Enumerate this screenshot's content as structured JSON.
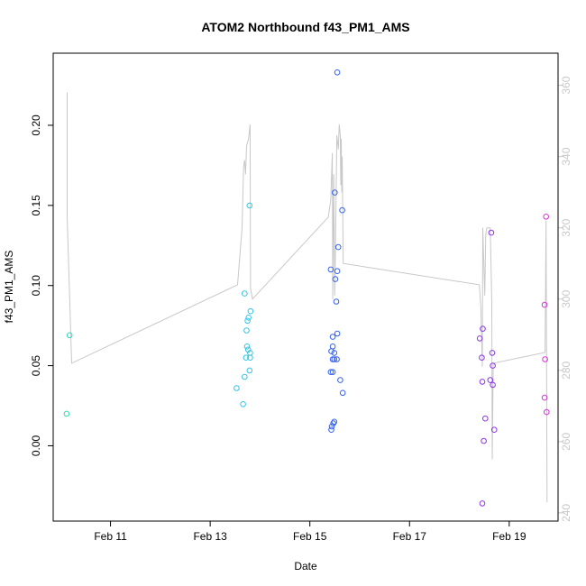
{
  "chart_data": {
    "type": "scatter",
    "title": "ATOM2 Northbound f43_PM1_AMS",
    "xlabel": "Date",
    "ylabel": "f43_PM1_AMS",
    "xlim": [
      9.85,
      19.98
    ],
    "ylim": [
      -0.047,
      0.245
    ],
    "y2lim": [
      237.7,
      369.0
    ],
    "grid": false,
    "x_ticks": [
      {
        "value": 11,
        "label": "Feb 11"
      },
      {
        "value": 13,
        "label": "Feb 13"
      },
      {
        "value": 15,
        "label": "Feb 15"
      },
      {
        "value": 17,
        "label": "Feb 17"
      },
      {
        "value": 19,
        "label": "Feb 19"
      }
    ],
    "y_ticks": [
      {
        "value": 0.0,
        "label": "0.00"
      },
      {
        "value": 0.05,
        "label": "0.05"
      },
      {
        "value": 0.1,
        "label": "0.10"
      },
      {
        "value": 0.15,
        "label": "0.15"
      },
      {
        "value": 0.2,
        "label": "0.20"
      }
    ],
    "y2_ticks": [
      {
        "value": 240,
        "label": "240"
      },
      {
        "value": 260,
        "label": "260"
      },
      {
        "value": 280,
        "label": "280"
      },
      {
        "value": 300,
        "label": "300"
      },
      {
        "value": 320,
        "label": "320"
      },
      {
        "value": 340,
        "label": "340"
      },
      {
        "value": 360,
        "label": "360"
      }
    ],
    "points": [
      {
        "x": 10.18,
        "y": 0.069,
        "color": "#33d6b5"
      },
      {
        "x": 10.12,
        "y": 0.02,
        "color": "#33d6b5"
      },
      {
        "x": 13.69,
        "y": 0.095,
        "color": "#33c5e6"
      },
      {
        "x": 13.79,
        "y": 0.15,
        "color": "#33c5e6"
      },
      {
        "x": 13.81,
        "y": 0.084,
        "color": "#33c5e6"
      },
      {
        "x": 13.77,
        "y": 0.08,
        "color": "#33c5e6"
      },
      {
        "x": 13.75,
        "y": 0.078,
        "color": "#33c5e6"
      },
      {
        "x": 13.73,
        "y": 0.072,
        "color": "#33c5e6"
      },
      {
        "x": 13.74,
        "y": 0.062,
        "color": "#33c5e6"
      },
      {
        "x": 13.76,
        "y": 0.06,
        "color": "#33c5e6"
      },
      {
        "x": 13.8,
        "y": 0.058,
        "color": "#33c5e6"
      },
      {
        "x": 13.72,
        "y": 0.055,
        "color": "#33c5e6"
      },
      {
        "x": 13.8,
        "y": 0.055,
        "color": "#33c5e6"
      },
      {
        "x": 13.79,
        "y": 0.047,
        "color": "#33c5e6"
      },
      {
        "x": 13.69,
        "y": 0.043,
        "color": "#33c5e6"
      },
      {
        "x": 13.53,
        "y": 0.036,
        "color": "#33c5e6"
      },
      {
        "x": 13.66,
        "y": 0.026,
        "color": "#33c5e6"
      },
      {
        "x": 15.55,
        "y": 0.233,
        "color": "#3361f0"
      },
      {
        "x": 15.5,
        "y": 0.158,
        "color": "#3361f0"
      },
      {
        "x": 15.65,
        "y": 0.147,
        "color": "#3361f0"
      },
      {
        "x": 15.57,
        "y": 0.124,
        "color": "#3361f0"
      },
      {
        "x": 15.42,
        "y": 0.11,
        "color": "#3361f0"
      },
      {
        "x": 15.55,
        "y": 0.109,
        "color": "#3361f0"
      },
      {
        "x": 15.51,
        "y": 0.104,
        "color": "#3361f0"
      },
      {
        "x": 15.53,
        "y": 0.09,
        "color": "#3361f0"
      },
      {
        "x": 15.55,
        "y": 0.07,
        "color": "#3361f0"
      },
      {
        "x": 15.46,
        "y": 0.068,
        "color": "#3361f0"
      },
      {
        "x": 15.46,
        "y": 0.062,
        "color": "#3361f0"
      },
      {
        "x": 15.43,
        "y": 0.059,
        "color": "#3361f0"
      },
      {
        "x": 15.49,
        "y": 0.058,
        "color": "#3361f0"
      },
      {
        "x": 15.46,
        "y": 0.054,
        "color": "#3361f0"
      },
      {
        "x": 15.49,
        "y": 0.054,
        "color": "#3361f0"
      },
      {
        "x": 15.54,
        "y": 0.054,
        "color": "#3361f0"
      },
      {
        "x": 15.42,
        "y": 0.046,
        "color": "#3361f0"
      },
      {
        "x": 15.46,
        "y": 0.046,
        "color": "#3361f0"
      },
      {
        "x": 15.61,
        "y": 0.041,
        "color": "#3361f0"
      },
      {
        "x": 15.66,
        "y": 0.033,
        "color": "#3361f0"
      },
      {
        "x": 15.49,
        "y": 0.015,
        "color": "#3361f0"
      },
      {
        "x": 15.47,
        "y": 0.014,
        "color": "#3361f0"
      },
      {
        "x": 15.44,
        "y": 0.012,
        "color": "#3361f0"
      },
      {
        "x": 15.43,
        "y": 0.01,
        "color": "#3361f0"
      },
      {
        "x": 18.64,
        "y": 0.133,
        "color": "#8a33e6"
      },
      {
        "x": 18.47,
        "y": 0.073,
        "color": "#8a33e6"
      },
      {
        "x": 18.41,
        "y": 0.067,
        "color": "#8a33e6"
      },
      {
        "x": 18.66,
        "y": 0.058,
        "color": "#8a33e6"
      },
      {
        "x": 18.45,
        "y": 0.055,
        "color": "#8a33e6"
      },
      {
        "x": 18.67,
        "y": 0.05,
        "color": "#8a33e6"
      },
      {
        "x": 18.62,
        "y": 0.041,
        "color": "#8a33e6"
      },
      {
        "x": 18.46,
        "y": 0.04,
        "color": "#8a33e6"
      },
      {
        "x": 18.67,
        "y": 0.038,
        "color": "#8a33e6"
      },
      {
        "x": 18.52,
        "y": 0.017,
        "color": "#8a33e6"
      },
      {
        "x": 18.7,
        "y": 0.01,
        "color": "#8a33e6"
      },
      {
        "x": 18.49,
        "y": 0.003,
        "color": "#8a33e6"
      },
      {
        "x": 18.46,
        "y": -0.036,
        "color": "#8a33e6"
      },
      {
        "x": 19.74,
        "y": 0.143,
        "color": "#d633d6"
      },
      {
        "x": 19.71,
        "y": 0.088,
        "color": "#d633d6"
      },
      {
        "x": 19.72,
        "y": 0.054,
        "color": "#d633d6"
      },
      {
        "x": 19.71,
        "y": 0.03,
        "color": "#d633d6"
      },
      {
        "x": 19.75,
        "y": 0.021,
        "color": "#d633d6"
      }
    ],
    "secondary_line": {
      "axis": "right",
      "color": "#c8c8c8",
      "points": [
        [
          10.13,
          358
        ],
        [
          10.13,
          323
        ],
        [
          10.22,
          282
        ],
        [
          13.55,
          304
        ],
        [
          13.64,
          320
        ],
        [
          13.67,
          337
        ],
        [
          13.69,
          339
        ],
        [
          13.71,
          335
        ],
        [
          13.73,
          343
        ],
        [
          13.77,
          345
        ],
        [
          13.8,
          349
        ],
        [
          13.81,
          303
        ],
        [
          13.85,
          300
        ],
        [
          15.37,
          323
        ],
        [
          15.42,
          328
        ],
        [
          15.45,
          341
        ],
        [
          15.46,
          300
        ],
        [
          15.48,
          335
        ],
        [
          15.5,
          301
        ],
        [
          15.52,
          320
        ],
        [
          15.54,
          346
        ],
        [
          15.57,
          342
        ],
        [
          15.59,
          349
        ],
        [
          15.61,
          346
        ],
        [
          15.62,
          332
        ],
        [
          15.63,
          345
        ],
        [
          15.64,
          330
        ],
        [
          15.65,
          340
        ],
        [
          15.67,
          310
        ],
        [
          18.4,
          304
        ],
        [
          18.43,
          298
        ],
        [
          18.46,
          281
        ],
        [
          18.47,
          320
        ],
        [
          18.51,
          301
        ],
        [
          18.53,
          318
        ],
        [
          18.55,
          320
        ],
        [
          18.62,
          320
        ],
        [
          18.65,
          299
        ],
        [
          18.66,
          255
        ],
        [
          18.68,
          282
        ],
        [
          19.72,
          285
        ],
        [
          19.74,
          322
        ],
        [
          19.76,
          243
        ]
      ]
    }
  }
}
